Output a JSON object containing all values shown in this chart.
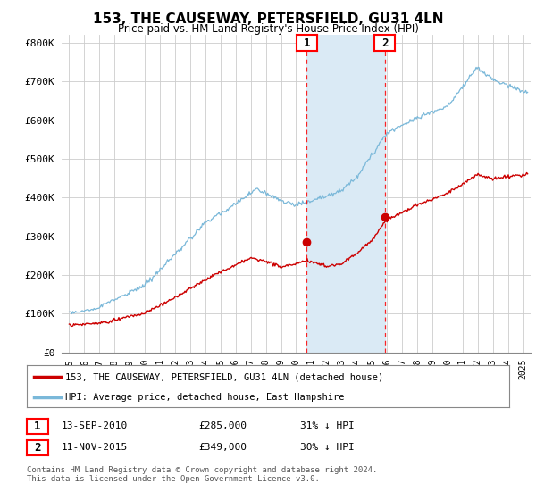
{
  "title": "153, THE CAUSEWAY, PETERSFIELD, GU31 4LN",
  "subtitle": "Price paid vs. HM Land Registry's House Price Index (HPI)",
  "ylabel_ticks": [
    "£0",
    "£100K",
    "£200K",
    "£300K",
    "£400K",
    "£500K",
    "£600K",
    "£700K",
    "£800K"
  ],
  "ylim": [
    0,
    820000
  ],
  "xlim_start": 1994.5,
  "xlim_end": 2025.5,
  "sale1_x": 2010.7,
  "sale1_y": 285000,
  "sale1_label": "1",
  "sale2_x": 2015.85,
  "sale2_y": 349000,
  "sale2_label": "2",
  "shaded_x1": 2010.7,
  "shaded_x2": 2015.85,
  "hpi_color": "#7ab8d9",
  "price_color": "#cc0000",
  "shade_color": "#daeaf5",
  "grid_color": "#cccccc",
  "legend_label_price": "153, THE CAUSEWAY, PETERSFIELD, GU31 4LN (detached house)",
  "legend_label_hpi": "HPI: Average price, detached house, East Hampshire",
  "table_rows": [
    {
      "num": "1",
      "date": "13-SEP-2010",
      "price": "£285,000",
      "note": "31% ↓ HPI"
    },
    {
      "num": "2",
      "date": "11-NOV-2015",
      "price": "£349,000",
      "note": "30% ↓ HPI"
    }
  ],
  "footer": "Contains HM Land Registry data © Crown copyright and database right 2024.\nThis data is licensed under the Open Government Licence v3.0.",
  "background_color": "#ffffff"
}
